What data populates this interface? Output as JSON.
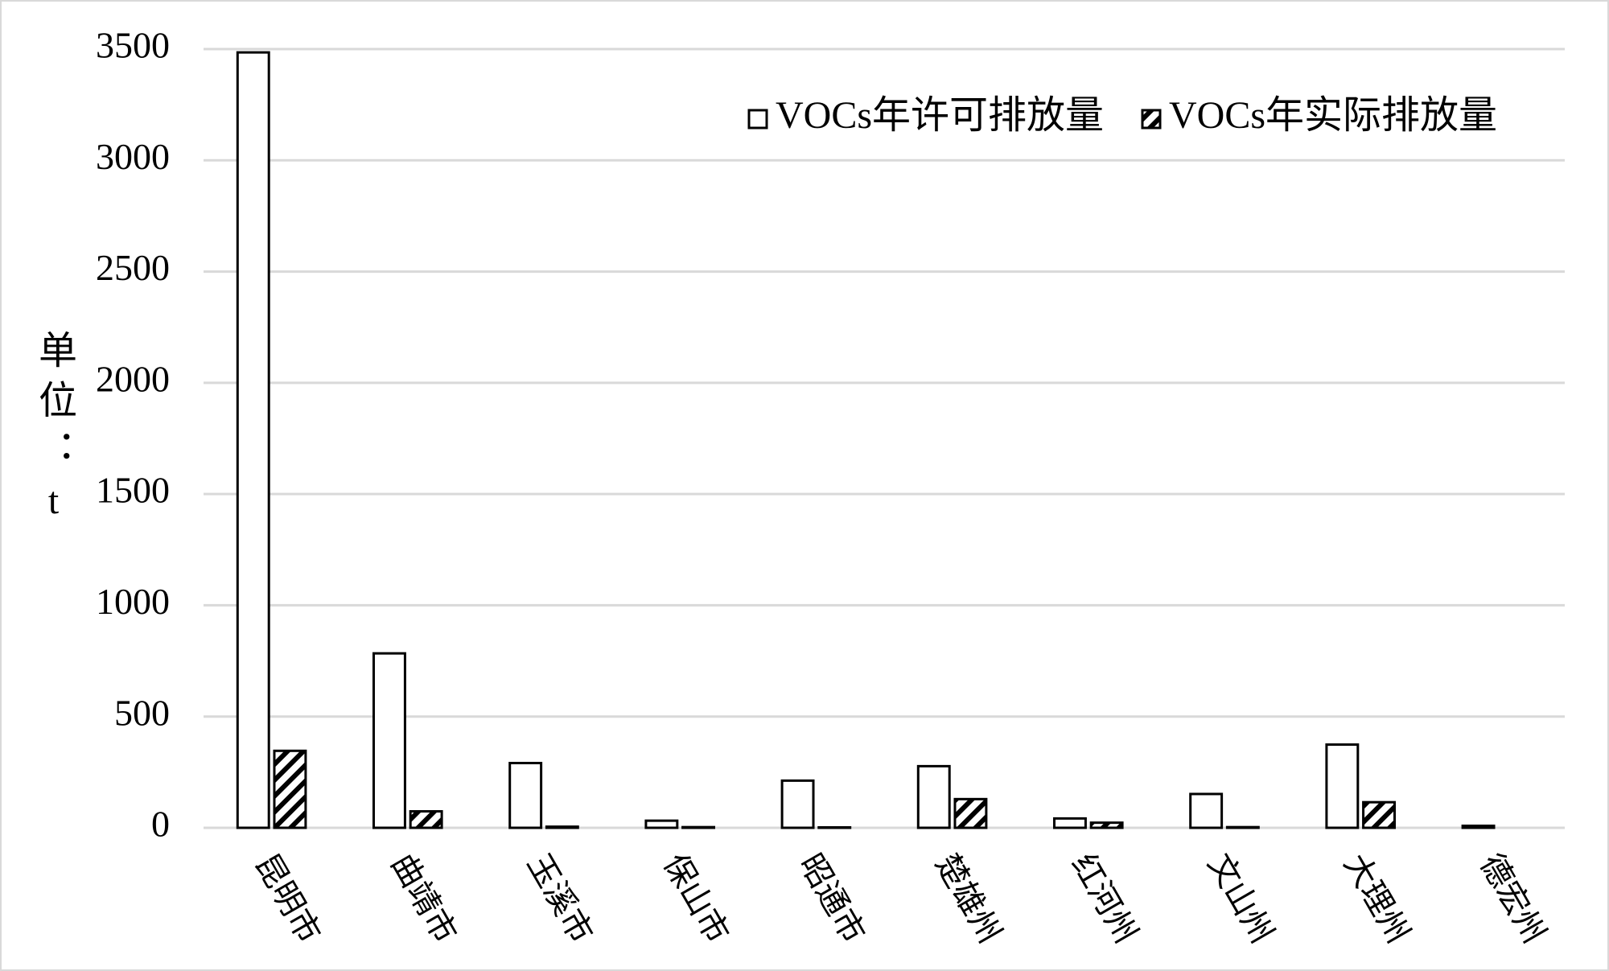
{
  "chart_data": {
    "type": "bar",
    "y_label": "单位：t",
    "categories": [
      "昆明市",
      "曲靖市",
      "玉溪市",
      "保山市",
      "昭通市",
      "楚雄州",
      "红河州",
      "文山州",
      "大理州",
      "德宏州"
    ],
    "series": [
      {
        "name": "VOCs年许可排放量",
        "color": "#000000",
        "values": [
          3485,
          784,
          291,
          32,
          212,
          277,
          42,
          152,
          374,
          9
        ]
      },
      {
        "name": "VOCs年实际排放量",
        "color": "#000000",
        "pattern": "diagonal-hatch",
        "values": [
          346,
          74,
          5,
          3,
          2,
          129,
          23,
          3,
          115,
          0
        ]
      }
    ],
    "ylim": [
      0,
      3500
    ],
    "yticks": [
      0,
      500,
      1000,
      1500,
      2000,
      2500,
      3000,
      3500
    ],
    "grid": true,
    "legend": "upper right"
  }
}
